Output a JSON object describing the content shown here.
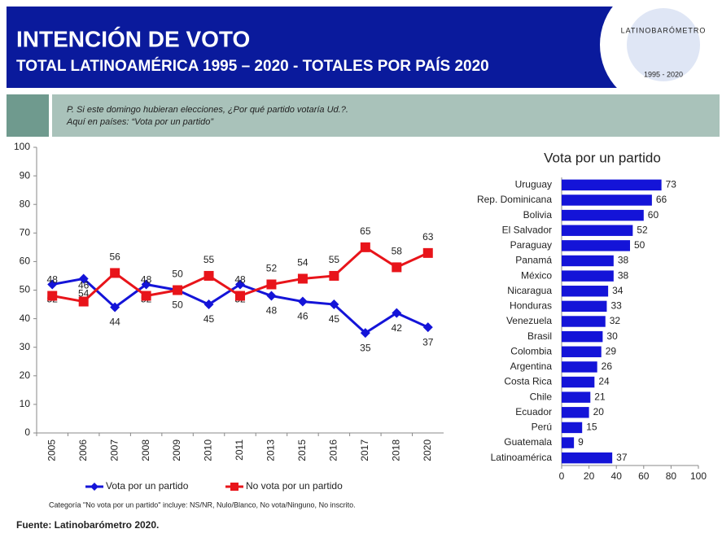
{
  "header": {
    "title": "INTENCIÓN DE VOTO",
    "subtitle": "TOTAL LATINOAMÉRICA 1995 – 2020 - TOTALES POR PAÍS 2020",
    "logo": "LATINOBARÓMETRO",
    "logo_years": "1995 - 2020"
  },
  "question": [
    "P. Si este domingo hubieran elecciones, ¿Por qué partido votaría Ud.?.",
    "Aquí en países: “Vota por un partido”"
  ],
  "note": "Categoría \"No vota por un partido\" incluye: NS/NR, Nulo/Blanco, No vota/Ninguno, No inscrito.",
  "source": "Fuente: Latinobarómetro 2020.",
  "chart_data": [
    {
      "type": "line",
      "categories": [
        "2005",
        "2006",
        "2007",
        "2008",
        "2009",
        "2010",
        "2011",
        "2013",
        "2015",
        "2016",
        "2017",
        "2018",
        "2020"
      ],
      "series": [
        {
          "name": "Vota por un partido",
          "color": "#1414d8",
          "values": [
            52,
            54,
            44,
            52,
            50,
            45,
            52,
            48,
            46,
            45,
            35,
            42,
            37
          ]
        },
        {
          "name": "No vota por un partido",
          "color": "#e8141a",
          "values": [
            48,
            46,
            56,
            48,
            50,
            55,
            48,
            52,
            54,
            55,
            65,
            58,
            63
          ]
        }
      ],
      "ylim": [
        0,
        100
      ],
      "yticks": [
        0,
        10,
        20,
        30,
        40,
        50,
        60,
        70,
        80,
        90,
        100
      ],
      "legend": "bottom"
    },
    {
      "type": "barh",
      "title": "Vota por un partido",
      "color": "#1414d8",
      "categories": [
        "Uruguay",
        "Rep. Dominicana",
        "Bolivia",
        "El Salvador",
        "Paraguay",
        "Panamá",
        "México",
        "Nicaragua",
        "Honduras",
        "Venezuela",
        "Brasil",
        "Colombia",
        "Argentina",
        "Costa Rica",
        "Chile",
        "Ecuador",
        "Perú",
        "Guatemala",
        "Latinoamérica"
      ],
      "values": [
        73,
        66,
        60,
        52,
        50,
        38,
        38,
        34,
        33,
        32,
        30,
        29,
        26,
        24,
        21,
        20,
        15,
        9,
        37
      ],
      "xlim": [
        0,
        100
      ],
      "xticks": [
        0,
        20,
        40,
        60,
        80,
        100
      ]
    }
  ]
}
